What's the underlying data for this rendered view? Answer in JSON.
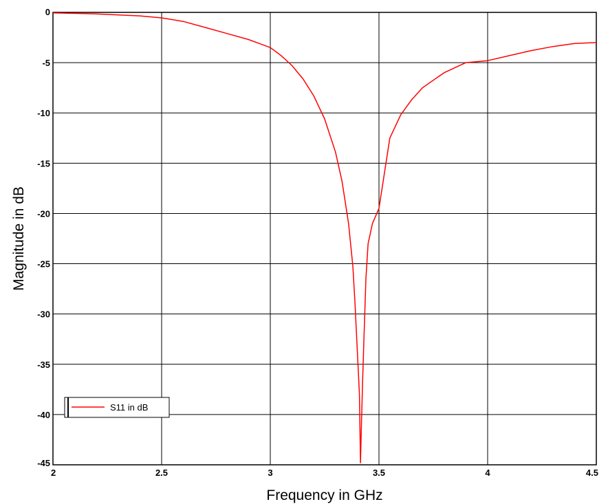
{
  "chart_data": {
    "type": "line",
    "xlabel": "Frequency in GHz",
    "ylabel": "Magnitude in dB",
    "xlim": [
      2,
      4.5
    ],
    "ylim": [
      -45,
      0
    ],
    "x_ticks": [
      "2",
      "2.5",
      "3",
      "3.5",
      "4",
      "4.5"
    ],
    "y_ticks": [
      "0",
      "-5",
      "-10",
      "-15",
      "-20",
      "-25",
      "-30",
      "-35",
      "-40",
      "-45"
    ],
    "grid": true,
    "legend_position": "bottom-left",
    "series": [
      {
        "name": "S11 in dB",
        "color": "#ff0000",
        "x": [
          2.0,
          2.2,
          2.4,
          2.5,
          2.6,
          2.7,
          2.8,
          2.9,
          3.0,
          3.05,
          3.1,
          3.15,
          3.2,
          3.25,
          3.3,
          3.33,
          3.36,
          3.38,
          3.39,
          3.4,
          3.41,
          3.415,
          3.42,
          3.425,
          3.43,
          3.44,
          3.45,
          3.47,
          3.5,
          3.55,
          3.6,
          3.65,
          3.7,
          3.8,
          3.9,
          4.0,
          4.1,
          4.2,
          4.3,
          4.4,
          4.5
        ],
        "y": [
          -0.05,
          -0.15,
          -0.35,
          -0.55,
          -0.9,
          -1.5,
          -2.1,
          -2.7,
          -3.5,
          -4.3,
          -5.3,
          -6.6,
          -8.3,
          -10.6,
          -13.9,
          -16.8,
          -21.0,
          -25.3,
          -29.0,
          -33.5,
          -38.0,
          -44.8,
          -40.5,
          -36.5,
          -33.0,
          -26.5,
          -23.0,
          -21.0,
          -19.5,
          -12.5,
          -10.2,
          -8.7,
          -7.5,
          -6.0,
          -5.0,
          -4.8,
          -4.3,
          -3.8,
          -3.4,
          -3.1,
          -3.0
        ]
      }
    ]
  }
}
